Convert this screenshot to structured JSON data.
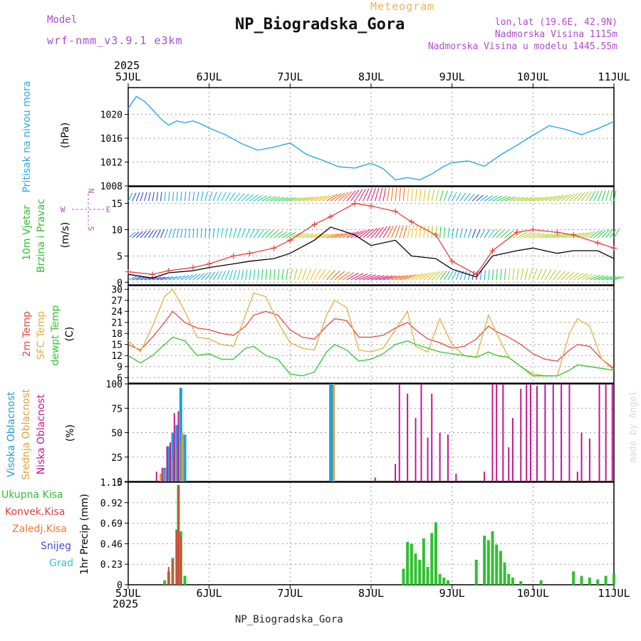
{
  "header": {
    "model_label": "Model",
    "model_value": "wrf-nmm_v3.9.1 e3km",
    "meteogram_label": "Meteogram",
    "station_title": "NP_Biogradska_Gora",
    "lonlat": "lon,lat (19.6E, 42.9N)",
    "elevation": "Nadmorska Visina 1115m",
    "model_elevation": "Nadmorska Visina u modelu 1445.55m"
  },
  "footer": {
    "station": "NP_Biogradska_Gora",
    "made_by": "made by Angel"
  },
  "colors": {
    "pressure": "#2aa8e8",
    "wind_speed": "#e84040",
    "wind_gust": "#000000",
    "temp2m": "#e84848",
    "sfc_temp": "#e0b040",
    "dewpt": "#30c830",
    "cloud_high": "#1aa0e0",
    "cloud_mid": "#e0a040",
    "cloud_low": "#c01890",
    "precip_total": "#30c030",
    "precip_conv": "#e04040",
    "precip_ice": "#f07830",
    "precip_snow": "#4848e0",
    "precip_hail": "#30c8c8"
  },
  "chart_data": [
    {
      "type": "line",
      "panel": "pressure",
      "ylabel": [
        "Pritisak na nivou mora",
        "(hPa)"
      ],
      "ylim": [
        1008,
        1024.5
      ],
      "yticks": [
        1008,
        1012,
        1016,
        1020
      ],
      "x": [
        0,
        0.1,
        0.2,
        0.3,
        0.4,
        0.5,
        0.6,
        0.7,
        0.8,
        0.9,
        1.0,
        1.2,
        1.4,
        1.6,
        1.8,
        2.0,
        2.2,
        2.4,
        2.6,
        2.8,
        3.0,
        3.15,
        3.3,
        3.45,
        3.6,
        3.75,
        3.9,
        4.0,
        4.2,
        4.4,
        4.6,
        4.8,
        5.0,
        5.2,
        5.4,
        5.6,
        5.8,
        6.0
      ],
      "values": [
        1021,
        1023,
        1022.2,
        1020.8,
        1019.3,
        1018.2,
        1018.9,
        1018.6,
        1018.9,
        1018.4,
        1017.7,
        1016.6,
        1015.1,
        1014,
        1014.5,
        1015.2,
        1013.3,
        1012.3,
        1011.2,
        1011,
        1011.8,
        1010.9,
        1009,
        1009.4,
        1009,
        1010,
        1011.3,
        1011.9,
        1012.2,
        1011.3,
        1013.2,
        1014.8,
        1016.5,
        1018.1,
        1017.5,
        1016.6,
        1017.6,
        1018.8
      ]
    },
    {
      "type": "line",
      "panel": "wind",
      "ylabel": [
        "10m Vjetar",
        "Brzina i Pravac",
        "(m/s)"
      ],
      "direction_legend": [
        "N",
        "S",
        "W",
        "E"
      ],
      "ylim": [
        -0.5,
        18.2
      ],
      "yticks": [
        0,
        5,
        10,
        15
      ],
      "x": [
        0,
        0.3,
        0.5,
        0.8,
        1.0,
        1.3,
        1.5,
        1.8,
        2.0,
        2.3,
        2.5,
        2.8,
        3.0,
        3.3,
        3.5,
        3.8,
        4.0,
        4.3,
        4.5,
        4.8,
        5.0,
        5.3,
        5.5,
        5.8,
        6.0
      ],
      "series": [
        {
          "name": "wind speed",
          "values": [
            2,
            1.5,
            2.2,
            2.8,
            3.5,
            5,
            5.5,
            6.5,
            8,
            11,
            12.5,
            15,
            14.5,
            13.5,
            11.5,
            9,
            4,
            1.5,
            6,
            9.5,
            10,
            9.5,
            9,
            7.5,
            6.5
          ]
        },
        {
          "name": "gust",
          "values": [
            1.5,
            0.8,
            1.8,
            2.2,
            2.8,
            3.5,
            4,
            4.5,
            5.5,
            8,
            10.5,
            9,
            7,
            8,
            5,
            4.5,
            2.5,
            1,
            5,
            6,
            6.5,
            5.5,
            6,
            6,
            4.5
          ]
        }
      ],
      "wind_barb_rows_ms": [
        1,
        9,
        16
      ]
    },
    {
      "type": "line",
      "panel": "temperature",
      "ylabel": [
        "2m Temp",
        "SFC Temp",
        "dewpt Temp",
        "(C)"
      ],
      "ylim": [
        4.5,
        31
      ],
      "yticks": [
        6,
        9,
        12,
        15,
        18,
        21,
        24,
        27,
        30
      ],
      "x": [
        0,
        0.15,
        0.3,
        0.45,
        0.55,
        0.7,
        0.85,
        1.0,
        1.15,
        1.3,
        1.45,
        1.55,
        1.7,
        1.85,
        2.0,
        2.15,
        2.3,
        2.45,
        2.55,
        2.7,
        2.85,
        3.0,
        3.15,
        3.3,
        3.45,
        3.55,
        3.7,
        3.85,
        4.0,
        4.15,
        4.3,
        4.45,
        4.55,
        4.7,
        4.85,
        5.0,
        5.15,
        5.3,
        5.45,
        5.55,
        5.7,
        5.85,
        6.0
      ],
      "series": [
        {
          "name": "2m Temp",
          "values": [
            15,
            13.5,
            17,
            21,
            24,
            21,
            19.5,
            19,
            18,
            17.5,
            20,
            23,
            24,
            23,
            19,
            17,
            16.5,
            20,
            22,
            21.5,
            17,
            17,
            17.5,
            19.5,
            21,
            19,
            16.5,
            15.5,
            14,
            14.5,
            16.5,
            20,
            18.5,
            17,
            15,
            12.5,
            11,
            10.5,
            13.5,
            15,
            14.5,
            11,
            8.5
          ]
        },
        {
          "name": "SFC Temp",
          "values": [
            16,
            13,
            20,
            28,
            30,
            24,
            17,
            16.5,
            15,
            14.5,
            23,
            29,
            28,
            21,
            15.5,
            14,
            13.5,
            23,
            27,
            25,
            13.5,
            13,
            14,
            19,
            24,
            14.5,
            13,
            22,
            15,
            12,
            11.5,
            23,
            18,
            11.5,
            9,
            7,
            6.5,
            6.5,
            18,
            22,
            20,
            11,
            8
          ]
        },
        {
          "name": "dewpt Temp",
          "values": [
            12,
            10,
            12,
            15,
            17,
            16,
            12,
            12.5,
            11,
            11,
            14,
            14.5,
            12,
            11,
            7,
            6.5,
            7.5,
            13,
            15,
            13.5,
            10.5,
            11,
            12.5,
            15,
            16,
            15,
            14,
            13,
            12.5,
            12,
            11.5,
            13,
            12,
            11.5,
            9,
            6.5,
            6.5,
            6.5,
            8,
            9.5,
            9,
            8.5,
            8
          ]
        }
      ]
    },
    {
      "type": "bar",
      "panel": "clouds",
      "ylabel": [
        "Visoka Oblacnost",
        "Srednja Oblacnost",
        "Niska Oblacnost",
        "(%)"
      ],
      "ylim": [
        0,
        100
      ],
      "yticks": [
        0,
        25,
        50,
        75,
        100
      ],
      "series": [
        {
          "name": "Visoka Oblacnost",
          "x": [
            0.45,
            0.5,
            0.55,
            0.6,
            0.65,
            0.7,
            2.5,
            2.52
          ],
          "values": [
            14,
            36,
            50,
            58,
            96,
            48,
            100,
            100
          ]
        },
        {
          "name": "Srednja Oblacnost",
          "x": [
            0.4,
            0.47,
            0.53,
            0.58,
            0.63,
            0.67,
            2.54
          ],
          "values": [
            8,
            12,
            22,
            34,
            40,
            50,
            100
          ]
        },
        {
          "name": "Niska Oblacnost",
          "x": [
            0.35,
            0.42,
            0.48,
            0.52,
            0.57,
            0.62,
            3.05,
            3.3,
            3.35,
            3.45,
            3.55,
            3.62,
            3.7,
            3.75,
            3.85,
            3.95,
            4.05,
            4.4,
            4.5,
            4.55,
            4.63,
            4.7,
            4.75,
            4.85,
            4.92,
            4.97,
            5.05,
            5.15,
            5.25,
            5.35,
            5.45,
            5.55,
            5.6,
            5.7,
            5.82,
            5.9,
            5.98
          ],
          "values": [
            10,
            14,
            36,
            40,
            70,
            72,
            4,
            18,
            100,
            90,
            65,
            100,
            45,
            90,
            50,
            48,
            8,
            10,
            100,
            100,
            100,
            35,
            65,
            95,
            100,
            100,
            98,
            100,
            100,
            100,
            100,
            10,
            50,
            44,
            100,
            100,
            100
          ]
        }
      ]
    },
    {
      "type": "bar",
      "panel": "precipitation",
      "ylabel": [
        "1hr Precip (mm)"
      ],
      "legend": [
        "Ukupna Kisa",
        "Konvek.Kisa",
        "Zaledj.Kisa",
        "Snijeg",
        "Grad"
      ],
      "ylim": [
        0,
        1.15
      ],
      "yticks": [
        0,
        0.23,
        0.46,
        0.69,
        0.92,
        1.15
      ],
      "series": [
        {
          "name": "Ukupna Kisa",
          "x": [
            0.45,
            0.5,
            0.55,
            0.6,
            0.62,
            0.65,
            0.7,
            3.4,
            3.45,
            3.5,
            3.55,
            3.6,
            3.65,
            3.7,
            3.75,
            3.8,
            3.85,
            3.9,
            3.95,
            4.3,
            4.4,
            4.45,
            4.5,
            4.55,
            4.6,
            4.65,
            4.7,
            4.75,
            4.85,
            5.1,
            5.5,
            5.6,
            5.7,
            5.8,
            5.9,
            6.0
          ],
          "values": [
            0.05,
            0.15,
            0.3,
            0.62,
            1.12,
            0.6,
            0.1,
            0.18,
            0.48,
            0.46,
            0.35,
            0.28,
            0.52,
            0.2,
            0.58,
            0.7,
            0.12,
            0.08,
            0.05,
            0.28,
            0.55,
            0.5,
            0.6,
            0.45,
            0.38,
            0.25,
            0.12,
            0.08,
            0.04,
            0.05,
            0.15,
            0.1,
            0.08,
            0.06,
            0.1,
            0.12
          ]
        },
        {
          "name": "Konvek.Kisa",
          "x": [
            0.5,
            0.55,
            0.6,
            0.62,
            0.65
          ],
          "values": [
            0.2,
            0.28,
            0.6,
            1.1,
            0.55
          ]
        }
      ]
    }
  ],
  "axes": {
    "year": "2025",
    "date_labels": [
      "5JUL",
      "6JUL",
      "7JUL",
      "8JUL",
      "9JUL",
      "10JUL",
      "11JUL"
    ],
    "days": 6
  }
}
